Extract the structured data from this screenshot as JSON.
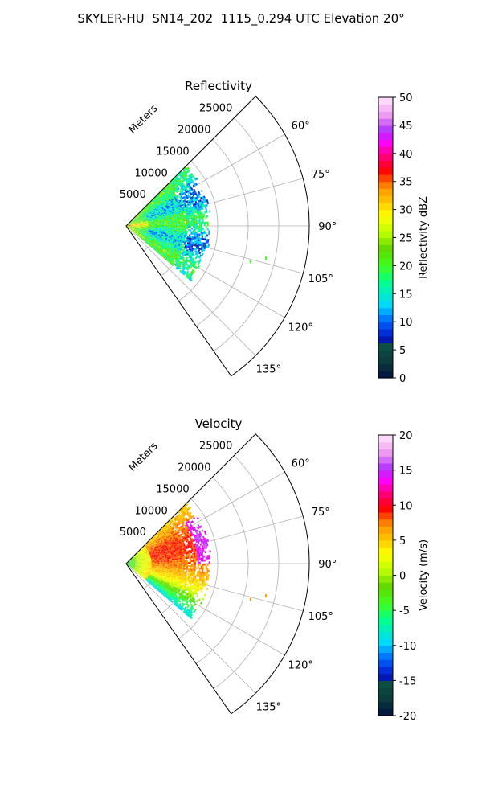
{
  "figure": {
    "title": "SKYLER-HU  SN14_202  1115_0.294 UTC Elevation 20°"
  },
  "chart_data": [
    {
      "type": "heatmap",
      "subtype": "polar-sector",
      "title": "Reflectivity",
      "range_label": "Meters",
      "range_ticks": [
        "5000",
        "10000",
        "15000",
        "20000",
        "25000"
      ],
      "range_values": [
        5000,
        10000,
        15000,
        20000,
        25000
      ],
      "rmax": 30000,
      "azimuth_ticks": [
        "60°",
        "75°",
        "90°",
        "105°",
        "120°",
        "135°"
      ],
      "azimuth_values": [
        60,
        75,
        90,
        105,
        120,
        135
      ],
      "azimuth_range": [
        45,
        145
      ],
      "data_extent": {
        "range_max": 14000,
        "azimuth": [
          45,
          130
        ]
      },
      "colorbar": {
        "label": "Reflectivity dBZ",
        "ticks": [
          "0",
          "5",
          "10",
          "15",
          "20",
          "25",
          "30",
          "35",
          "40",
          "45",
          "50"
        ],
        "values": [
          0,
          5,
          10,
          15,
          20,
          25,
          30,
          35,
          40,
          45,
          50
        ],
        "min": 0,
        "max": 50,
        "stops": [
          [
            0,
            "#001040"
          ],
          [
            0.06,
            "#0c3c3c"
          ],
          [
            0.12,
            "#0c5040"
          ],
          [
            0.14,
            "#0010c0"
          ],
          [
            0.2,
            "#0060ff"
          ],
          [
            0.26,
            "#00d8ff"
          ],
          [
            0.34,
            "#00ff90"
          ],
          [
            0.4,
            "#40ff20"
          ],
          [
            0.46,
            "#60d800"
          ],
          [
            0.52,
            "#c0ff00"
          ],
          [
            0.58,
            "#ffff00"
          ],
          [
            0.62,
            "#ffd000"
          ],
          [
            0.68,
            "#ff9000"
          ],
          [
            0.74,
            "#ff0000"
          ],
          [
            0.8,
            "#ff0090"
          ],
          [
            0.84,
            "#ff00ff"
          ],
          [
            0.88,
            "#b030ff"
          ],
          [
            0.94,
            "#f0a0f0"
          ],
          [
            1,
            "#ffe8ff"
          ]
        ]
      }
    },
    {
      "type": "heatmap",
      "subtype": "polar-sector",
      "title": "Velocity",
      "range_label": "Meters",
      "range_ticks": [
        "5000",
        "10000",
        "15000",
        "20000",
        "25000"
      ],
      "range_values": [
        5000,
        10000,
        15000,
        20000,
        25000
      ],
      "rmax": 30000,
      "azimuth_ticks": [
        "60°",
        "75°",
        "90°",
        "105°",
        "120°",
        "135°"
      ],
      "azimuth_values": [
        60,
        75,
        90,
        105,
        120,
        135
      ],
      "azimuth_range": [
        45,
        145
      ],
      "data_extent": {
        "range_max": 14000,
        "azimuth": [
          45,
          130
        ]
      },
      "colorbar": {
        "label": "Velocity (m/s)",
        "ticks": [
          "-20",
          "-15",
          "-10",
          "-5",
          "0",
          "5",
          "10",
          "15",
          "20"
        ],
        "values": [
          -20,
          -15,
          -10,
          -5,
          0,
          5,
          10,
          15,
          20
        ],
        "min": -20,
        "max": 20,
        "stops": [
          [
            0,
            "#001040"
          ],
          [
            0.06,
            "#0c3c3c"
          ],
          [
            0.12,
            "#0c5040"
          ],
          [
            0.14,
            "#0010c0"
          ],
          [
            0.2,
            "#0060ff"
          ],
          [
            0.26,
            "#00d8ff"
          ],
          [
            0.34,
            "#00ff90"
          ],
          [
            0.4,
            "#40ff20"
          ],
          [
            0.46,
            "#60d800"
          ],
          [
            0.52,
            "#c0ff00"
          ],
          [
            0.58,
            "#ffff00"
          ],
          [
            0.62,
            "#ffd000"
          ],
          [
            0.68,
            "#ff9000"
          ],
          [
            0.74,
            "#ff0000"
          ],
          [
            0.8,
            "#ff0090"
          ],
          [
            0.84,
            "#ff00ff"
          ],
          [
            0.88,
            "#b030ff"
          ],
          [
            0.94,
            "#f0a0f0"
          ],
          [
            1,
            "#ffe8ff"
          ]
        ]
      }
    }
  ]
}
